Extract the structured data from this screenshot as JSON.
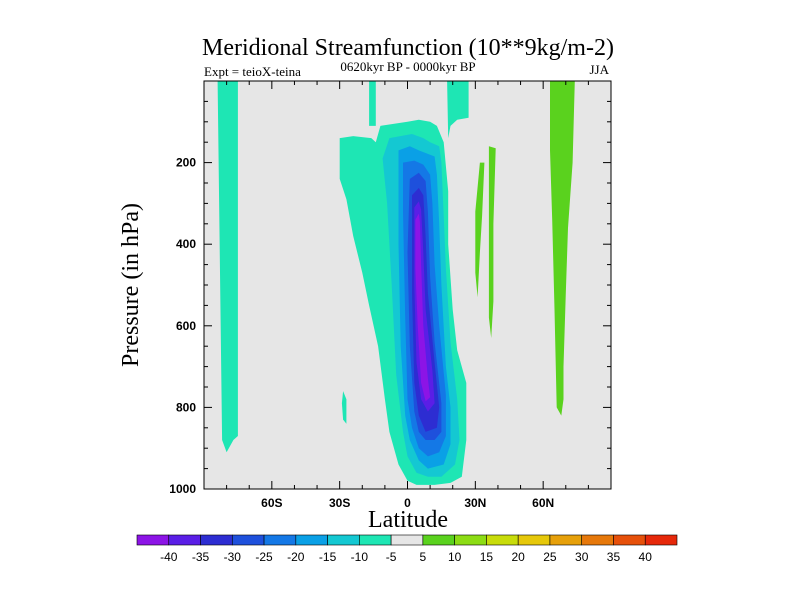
{
  "chart_data": {
    "type": "contour",
    "title": "Meridional Streamfunction (10**9kg/m-2)",
    "subtitle": "0620kyr BP - 0000kyr BP",
    "left_label": "Expt = teioX-teina",
    "right_label": "JJA",
    "xlabel": "Latitude",
    "ylabel": "Pressure (in hPa)",
    "xlim": [
      -90,
      90
    ],
    "ylim": [
      1000,
      0
    ],
    "y_inverted": true,
    "x_ticks": [
      {
        "value": -60,
        "label": "60S"
      },
      {
        "value": -30,
        "label": "30S"
      },
      {
        "value": 0,
        "label": "0"
      },
      {
        "value": 30,
        "label": "30N"
      },
      {
        "value": 60,
        "label": "60N"
      }
    ],
    "y_ticks": [
      {
        "value": 200,
        "label": "200"
      },
      {
        "value": 400,
        "label": "400"
      },
      {
        "value": 600,
        "label": "600"
      },
      {
        "value": 800,
        "label": "800"
      },
      {
        "value": 1000,
        "label": "1000"
      }
    ],
    "background_color": "#e6e6e6",
    "colorbar": {
      "labels": [
        "-40",
        "-35",
        "-30",
        "-25",
        "-20",
        "-15",
        "-10",
        "-5",
        "5",
        "10",
        "15",
        "20",
        "25",
        "30",
        "35",
        "40"
      ],
      "colors": [
        "#8c14e6",
        "#5a1ee6",
        "#2d2dd2",
        "#1e50dc",
        "#1478e6",
        "#0aa0e6",
        "#14c8d2",
        "#1ee6b4",
        "#e6e6e6",
        "#5ad21e",
        "#8cdc14",
        "#c8dc0a",
        "#e6c80a",
        "#e6a00a",
        "#e6780a",
        "#e6500a",
        "#e6280a"
      ]
    },
    "contour_regions": [
      {
        "name": "band-60s",
        "level": -7.5,
        "color": "#1ee6b4",
        "outline": [
          [
            -84,
            0
          ],
          [
            -75,
            0
          ],
          [
            -75,
            870
          ],
          [
            -77,
            880
          ],
          [
            -80,
            910
          ],
          [
            -82,
            880
          ]
        ]
      },
      {
        "name": "band-15n-upper",
        "level": -7.5,
        "color": "#1ee6b4",
        "outline": [
          [
            -17,
            0
          ],
          [
            -14,
            0
          ],
          [
            -14,
            110
          ],
          [
            -17,
            110
          ]
        ]
      },
      {
        "name": "central-outer",
        "level": -7.5,
        "color": "#1ee6b4",
        "outline": [
          [
            -30,
            140
          ],
          [
            -24,
            135
          ],
          [
            -16,
            140
          ],
          [
            -14,
            150
          ],
          [
            -12,
            110
          ],
          [
            0,
            100
          ],
          [
            5,
            95
          ],
          [
            10,
            100
          ],
          [
            13,
            110
          ],
          [
            16,
            150
          ],
          [
            18,
            270
          ],
          [
            18,
            400
          ],
          [
            20,
            560
          ],
          [
            22,
            660
          ],
          [
            26,
            740
          ],
          [
            26,
            880
          ],
          [
            24,
            970
          ],
          [
            19,
            985
          ],
          [
            12,
            990
          ],
          [
            4,
            990
          ],
          [
            0,
            980
          ],
          [
            -4,
            940
          ],
          [
            -8,
            860
          ],
          [
            -10,
            780
          ],
          [
            -13,
            650
          ],
          [
            -17,
            550
          ],
          [
            -20,
            470
          ],
          [
            -24,
            380
          ],
          [
            -27,
            290
          ],
          [
            -30,
            240
          ]
        ]
      },
      {
        "name": "speck-32s",
        "level": -7.5,
        "color": "#1ee6b4",
        "outline": [
          [
            -28.5,
            760
          ],
          [
            -27,
            780
          ],
          [
            -27,
            840
          ],
          [
            -28.5,
            830
          ],
          [
            -29,
            790
          ]
        ]
      },
      {
        "name": "band-20n-top",
        "level": -7.5,
        "color": "#1ee6b4",
        "outline": [
          [
            17.5,
            0
          ],
          [
            27,
            0
          ],
          [
            27,
            90
          ],
          [
            22,
            95
          ],
          [
            19,
            110
          ],
          [
            18,
            140
          ]
        ]
      },
      {
        "name": "central-m10",
        "level": -12.5,
        "color": "#14c8d2",
        "outline": [
          [
            -8,
            140
          ],
          [
            2,
            130
          ],
          [
            7,
            140
          ],
          [
            10,
            150
          ],
          [
            14,
            160
          ],
          [
            15,
            200
          ],
          [
            16,
            330
          ],
          [
            17,
            460
          ],
          [
            19,
            640
          ],
          [
            22,
            780
          ],
          [
            23,
            880
          ],
          [
            21,
            940
          ],
          [
            15,
            970
          ],
          [
            9,
            970
          ],
          [
            4,
            960
          ],
          [
            0,
            920
          ],
          [
            -2,
            860
          ],
          [
            -5,
            720
          ],
          [
            -7,
            500
          ],
          [
            -9,
            300
          ],
          [
            -11,
            190
          ]
        ]
      },
      {
        "name": "central-m15",
        "level": -17.5,
        "color": "#0aa0e6",
        "outline": [
          [
            -4,
            170
          ],
          [
            1,
            160
          ],
          [
            5,
            170
          ],
          [
            12,
            185
          ],
          [
            13,
            230
          ],
          [
            14,
            350
          ],
          [
            15,
            500
          ],
          [
            17,
            700
          ],
          [
            19,
            800
          ],
          [
            19,
            890
          ],
          [
            16,
            940
          ],
          [
            9,
            950
          ],
          [
            5,
            930
          ],
          [
            1,
            880
          ],
          [
            -1,
            820
          ],
          [
            -3,
            650
          ],
          [
            -4,
            400
          ]
        ]
      },
      {
        "name": "central-m20",
        "level": -22.5,
        "color": "#1478e6",
        "outline": [
          [
            -2,
            200
          ],
          [
            3,
            195
          ],
          [
            7,
            205
          ],
          [
            10,
            230
          ],
          [
            11,
            300
          ],
          [
            12,
            450
          ],
          [
            14,
            600
          ],
          [
            17,
            770
          ],
          [
            17,
            870
          ],
          [
            14,
            910
          ],
          [
            9,
            920
          ],
          [
            5,
            900
          ],
          [
            2,
            850
          ],
          [
            0,
            780
          ],
          [
            -1,
            580
          ],
          [
            -2,
            320
          ]
        ]
      },
      {
        "name": "central-m25",
        "level": -27.5,
        "color": "#1e50dc",
        "outline": [
          [
            1,
            240
          ],
          [
            5,
            225
          ],
          [
            8,
            245
          ],
          [
            9,
            320
          ],
          [
            10,
            480
          ],
          [
            12,
            640
          ],
          [
            15,
            790
          ],
          [
            15,
            860
          ],
          [
            12,
            880
          ],
          [
            8,
            880
          ],
          [
            5,
            860
          ],
          [
            3,
            810
          ],
          [
            1,
            650
          ],
          [
            0,
            420
          ]
        ]
      },
      {
        "name": "central-m30",
        "level": -32.5,
        "color": "#2d2dd2",
        "outline": [
          [
            2,
            280
          ],
          [
            5,
            262
          ],
          [
            7,
            280
          ],
          [
            8,
            380
          ],
          [
            9,
            520
          ],
          [
            12,
            690
          ],
          [
            14,
            800
          ],
          [
            13,
            850
          ],
          [
            8,
            860
          ],
          [
            5,
            820
          ],
          [
            3,
            740
          ],
          [
            2,
            520
          ]
        ]
      },
      {
        "name": "central-m35",
        "level": -37.5,
        "color": "#5a1ee6",
        "outline": [
          [
            3,
            310
          ],
          [
            5,
            295
          ],
          [
            6,
            315
          ],
          [
            7,
            420
          ],
          [
            8,
            560
          ],
          [
            11,
            710
          ],
          [
            12,
            790
          ],
          [
            9,
            810
          ],
          [
            6,
            780
          ],
          [
            4,
            690
          ],
          [
            3,
            500
          ]
        ]
      },
      {
        "name": "central-m40",
        "level": -42.5,
        "color": "#8c14e6",
        "outline": [
          [
            3.5,
            340
          ],
          [
            5,
            325
          ],
          [
            5.5,
            345
          ],
          [
            6,
            450
          ],
          [
            7,
            600
          ],
          [
            9,
            730
          ],
          [
            10,
            775
          ],
          [
            8,
            785
          ],
          [
            6,
            740
          ],
          [
            4.5,
            600
          ],
          [
            3.5,
            460
          ]
        ]
      },
      {
        "name": "green-30n",
        "level": 7.5,
        "color": "#5ad21e",
        "outline": [
          [
            32,
            200
          ],
          [
            34,
            200
          ],
          [
            33,
            330
          ],
          [
            32,
            420
          ],
          [
            31,
            530
          ],
          [
            30,
            470
          ],
          [
            30,
            320
          ]
        ]
      },
      {
        "name": "green-38n",
        "level": 7.5,
        "color": "#5ad21e",
        "outline": [
          [
            36,
            160
          ],
          [
            39,
            165
          ],
          [
            38,
            350
          ],
          [
            38,
            540
          ],
          [
            37,
            630
          ],
          [
            36,
            580
          ],
          [
            36,
            400
          ]
        ]
      },
      {
        "name": "green-65n",
        "level": 7.5,
        "color": "#5ad21e",
        "outline": [
          [
            63,
            0
          ],
          [
            74,
            0
          ],
          [
            73,
            200
          ],
          [
            71,
            360
          ],
          [
            70,
            520
          ],
          [
            69,
            700
          ],
          [
            69,
            780
          ],
          [
            68,
            820
          ],
          [
            66,
            800
          ],
          [
            65,
            560
          ],
          [
            64,
            340
          ],
          [
            63,
            170
          ]
        ]
      }
    ]
  }
}
